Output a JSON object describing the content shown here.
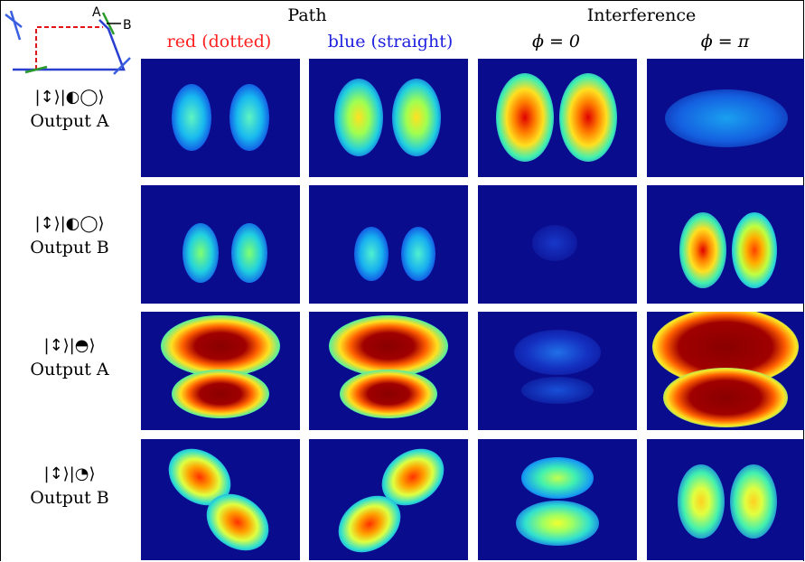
{
  "header": {
    "path_title": "Path",
    "interference_title": "Interference",
    "col_red": "red (dotted)",
    "col_blue": "blue (straight)",
    "col_phi0": "ϕ = 0",
    "col_phipi": "ϕ = π"
  },
  "diagram": {
    "label_a": "A",
    "label_b": "B"
  },
  "rows": [
    {
      "ket": "|↕⟩|◐◯⟩",
      "output": "Output A"
    },
    {
      "ket": "|↕⟩|◐◯⟩",
      "output": "Output B"
    },
    {
      "ket": "|↕⟩|◓⟩",
      "output": "Output A"
    },
    {
      "ket": "|↕⟩|◔⟩",
      "output": "Output B"
    }
  ],
  "colors": {
    "red_label": "#ff2020",
    "blue_label": "#2020e0",
    "background_panel": "#0a0c8e"
  }
}
